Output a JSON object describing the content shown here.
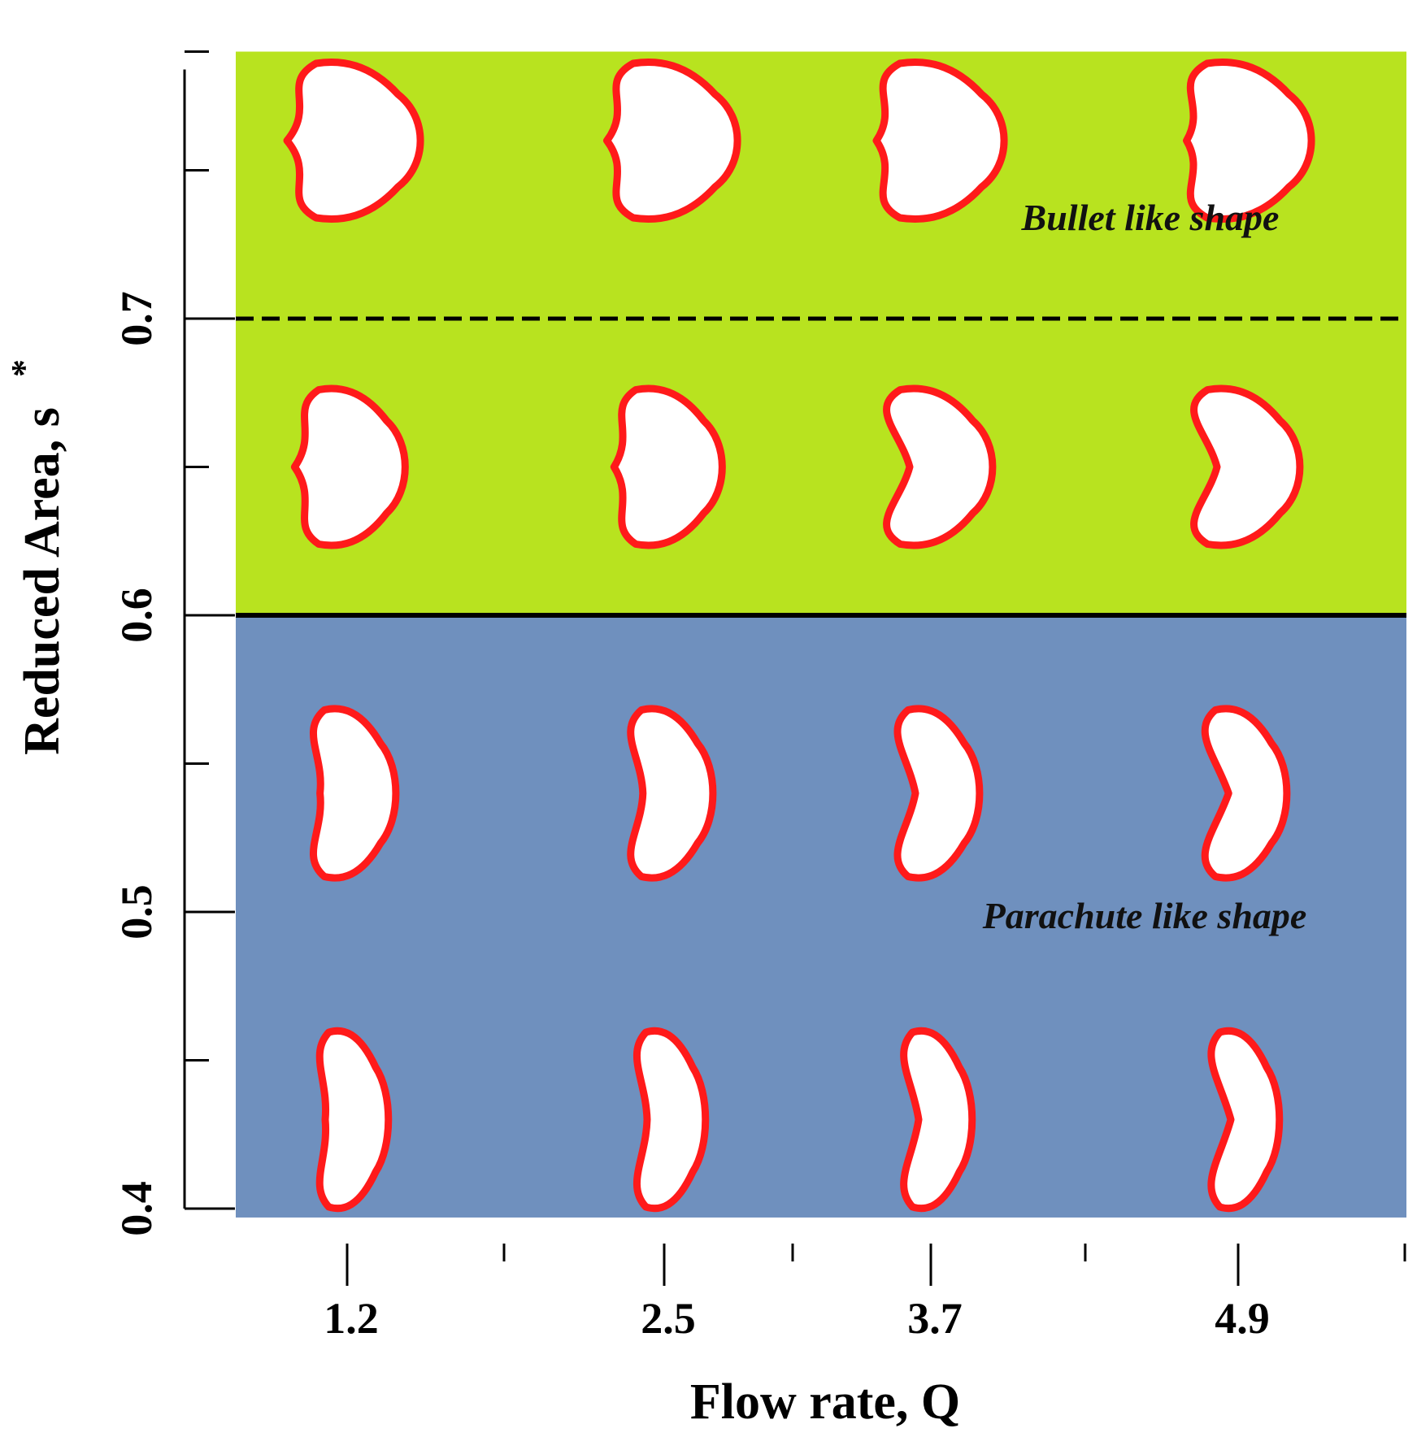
{
  "chart_data": {
    "type": "scatter",
    "xlabel": "Flow rate, Q",
    "ylabel_main": "Reduced Area, s",
    "ylabel_sup": "*",
    "x_ticks": [
      "1.2",
      "2.5",
      "3.7",
      "4.9"
    ],
    "y_ticks": [
      "0.4",
      "0.5",
      "0.6",
      "0.7"
    ],
    "y_values": [
      0.4,
      0.5,
      0.6,
      0.7
    ],
    "ylim": [
      0.4,
      0.79
    ],
    "regions": [
      {
        "label": "Bullet like shape",
        "y_from": 0.6,
        "y_to": 0.79,
        "color": "#b8e31f"
      },
      {
        "label": "Parachute like shape",
        "y_from": 0.397,
        "y_to": 0.6,
        "color": "#6f90be"
      }
    ],
    "boundary_solid": 0.6,
    "boundary_dashed": 0.7,
    "shape_color": "#ff1a1a",
    "shape_rows": [
      {
        "s": 0.76,
        "shapes": [
          "bullet",
          "bullet",
          "bullet",
          "bullet"
        ]
      },
      {
        "s": 0.65,
        "shapes": [
          "bullet",
          "bullet",
          "parachute",
          "parachute"
        ]
      },
      {
        "s": 0.54,
        "shapes": [
          "parachute",
          "parachute",
          "parachute",
          "parachute"
        ]
      },
      {
        "s": 0.43,
        "shapes": [
          "parachute",
          "parachute",
          "parachute",
          "parachute"
        ]
      }
    ]
  }
}
